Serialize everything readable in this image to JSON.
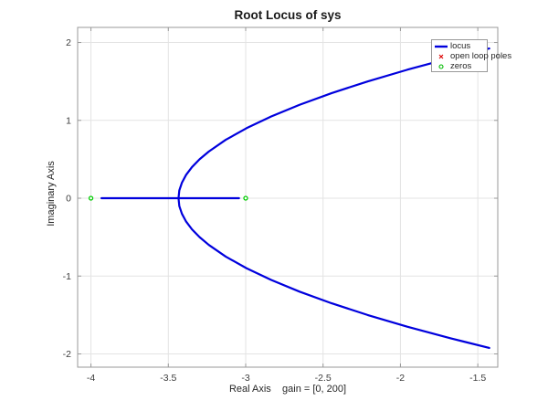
{
  "title": "Root Locus of sys",
  "legend": {
    "position": "top-right",
    "entries": [
      {
        "label": "locus",
        "type": "line",
        "color": "#0000dd"
      },
      {
        "label": "open loop poles",
        "type": "cross",
        "color": "#dd0000"
      },
      {
        "label": "zeros",
        "type": "circle",
        "color": "#00bb00"
      }
    ]
  },
  "chart_data": {
    "type": "line",
    "title": "Root Locus of sys",
    "xlabel": "Real Axis    gain = [0, 200]",
    "ylabel": "Imaginary Axis",
    "gain_range": [
      0,
      200
    ],
    "xlim": [
      -4.086,
      -1.371
    ],
    "ylim": [
      -2.17,
      2.194
    ],
    "grid": true,
    "xticks": [
      -4,
      -3.5,
      -3,
      -2.5,
      -2,
      -1.5
    ],
    "xtick_labels": [
      "-4",
      "-3.5",
      "-3",
      "-2.5",
      "-2",
      "-1.5"
    ],
    "yticks": [
      2,
      1,
      0,
      -1,
      -2
    ],
    "ytick_labels": [
      "2",
      "1",
      "0",
      "-1",
      "-2"
    ],
    "series": [
      {
        "name": "locus-complex-branch",
        "kind": "line",
        "color": "#0000dd",
        "points": [
          [
            -1.426,
            1.923
          ],
          [
            -1.675,
            1.8
          ],
          [
            -1.956,
            1.65
          ],
          [
            -2.212,
            1.5
          ],
          [
            -2.444,
            1.35
          ],
          [
            -2.652,
            1.2
          ],
          [
            -2.835,
            1.05
          ],
          [
            -2.994,
            0.9
          ],
          [
            -3.129,
            0.75
          ],
          [
            -3.238,
            0.6
          ],
          [
            -3.298,
            0.5
          ],
          [
            -3.347,
            0.4
          ],
          [
            -3.385,
            0.3
          ],
          [
            -3.412,
            0.2
          ],
          [
            -3.429,
            0.1
          ],
          [
            -3.434,
            0
          ],
          [
            -3.429,
            -0.1
          ],
          [
            -3.412,
            -0.2
          ],
          [
            -3.385,
            -0.3
          ],
          [
            -3.347,
            -0.4
          ],
          [
            -3.298,
            -0.5
          ],
          [
            -3.238,
            -0.6
          ],
          [
            -3.129,
            -0.75
          ],
          [
            -2.994,
            -0.9
          ],
          [
            -2.835,
            -1.05
          ],
          [
            -2.652,
            -1.2
          ],
          [
            -2.444,
            -1.35
          ],
          [
            -2.212,
            -1.5
          ],
          [
            -1.956,
            -1.65
          ],
          [
            -1.675,
            -1.8
          ],
          [
            -1.426,
            -1.923
          ]
        ]
      },
      {
        "name": "locus-real-axis-segment",
        "kind": "line",
        "color": "#0000dd",
        "points": [
          [
            -3.932,
            0
          ],
          [
            -3.043,
            0
          ]
        ]
      },
      {
        "name": "zeros",
        "kind": "marker",
        "marker": "circle",
        "color": "#00cc00",
        "points": [
          [
            -4,
            0
          ],
          [
            -3,
            0
          ]
        ]
      },
      {
        "name": "open loop poles",
        "kind": "marker",
        "marker": "cross",
        "color": "#dd0000",
        "points": []
      }
    ]
  },
  "style": {
    "grid_color": "#e3e3e3",
    "frame_color": "#999999",
    "tick_label_color": "#3c3c3c",
    "locus_color": "#0000dd",
    "zero_color": "#00cc00",
    "pole_color": "#dd0000"
  }
}
